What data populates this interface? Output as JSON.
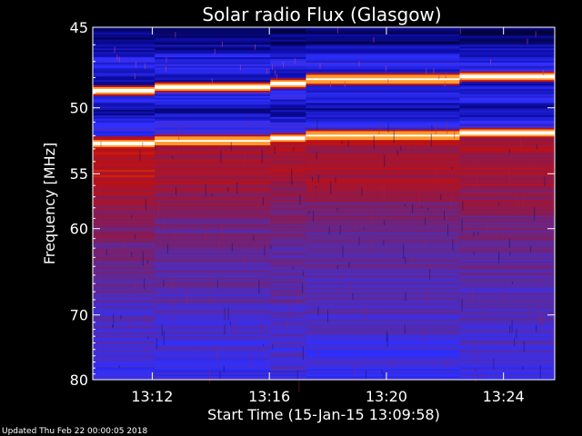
{
  "window": {
    "width": 640,
    "height": 480
  },
  "chart_data": {
    "type": "heatmap",
    "title": "Solar radio Flux (Glasgow)",
    "xlabel": "Start Time (15-Jan-15 13:09:58)",
    "ylabel": "Frequency [MHz]",
    "x_unit": "time (HH:MM, 15-Jan-15)",
    "x_range": [
      "13:09:58",
      "13:25:45"
    ],
    "x_ticks": [
      "13:12",
      "13:16",
      "13:20",
      "13:24"
    ],
    "y_range_mhz": [
      45,
      80
    ],
    "y_scale": "reciprocal (frequency increases downward)",
    "y_ticks": [
      45,
      50,
      55,
      60,
      70,
      80
    ],
    "colormap": [
      "#000020",
      "#0a0aa0",
      "#3030ff",
      "#5a2aa0",
      "#8a1a50",
      "#c01010",
      "#ff7a00",
      "#ffffb0",
      "#ffffff"
    ],
    "segment_boundaries_time": [
      "13:10:05",
      "13:12:05",
      "13:16:02",
      "13:17:15",
      "13:22:30",
      "13:25:45"
    ],
    "features": [
      {
        "type": "bright interference band",
        "freq_mhz": [
          48.8,
          48.6,
          48.4,
          48.1,
          47.9,
          47.7
        ]
      },
      {
        "type": "bright interference band",
        "freq_mhz": [
          52.6,
          52.4,
          52.2,
          52.0,
          51.8,
          51.6
        ]
      },
      {
        "type": "dark low-intensity band",
        "freq_mhz": [
          46.0,
          51.0
        ]
      },
      {
        "type": "elevated red emission",
        "freq_mhz": [
          52,
          62
        ]
      }
    ],
    "grid": false,
    "legend": "none"
  },
  "footer": {
    "updated": "Updated Thu Feb 22 00:00:05 2018"
  },
  "colors": {
    "background": "#000000",
    "text": "#ffffff",
    "axis": "#ffffff"
  }
}
